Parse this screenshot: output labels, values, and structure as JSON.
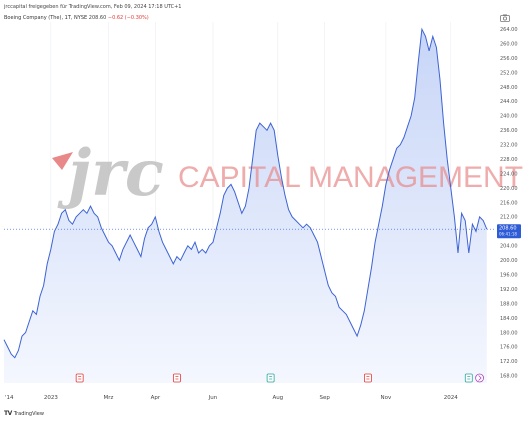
{
  "header": {
    "publisher_line": "jrccapital freigegeben für TradingView.com, Feb 09, 2024 17:18 UTC+1",
    "symbol": "Boeing Company (The), 1T, NYSE",
    "last": "208.60",
    "change": "−0.62 (−0.30%)"
  },
  "watermark": {
    "logo_text": "jrc",
    "company_text": "CAPITAL MANAGEMENT",
    "accent_color": "#e53935"
  },
  "footer": {
    "brand": "TradingView"
  },
  "colors": {
    "line": "#3d63d4",
    "area_top": "#c7d5f7",
    "area_bottom": "#f4f7fe",
    "price_badge": "#2e5bd6"
  },
  "chart_data": {
    "type": "area",
    "title": "",
    "xlabel": "",
    "ylabel": "",
    "ylim": [
      166,
      266
    ],
    "y_ticks": [
      168,
      172,
      176,
      180,
      184,
      188,
      192,
      196,
      200,
      204,
      208,
      212,
      216,
      220,
      224,
      228,
      232,
      236,
      240,
      244,
      248,
      252,
      256,
      260,
      264
    ],
    "x_ticks": [
      {
        "label": "'14",
        "t": 0
      },
      {
        "label": "2023",
        "t": 13
      },
      {
        "label": "Mrz",
        "t": 29
      },
      {
        "label": "Apr",
        "t": 42
      },
      {
        "label": "Jun",
        "t": 58
      },
      {
        "label": "Aug",
        "t": 76
      },
      {
        "label": "Sep",
        "t": 89
      },
      {
        "label": "Nov",
        "t": 106
      },
      {
        "label": "2024",
        "t": 124
      }
    ],
    "x_range": [
      0,
      136
    ],
    "last_price": {
      "value": 208.6,
      "label": "208.60",
      "countdown": "06:41:18"
    },
    "event_markers": [
      {
        "t": 21,
        "type": "E"
      },
      {
        "t": 48,
        "type": "E"
      },
      {
        "t": 74,
        "type": "D"
      },
      {
        "t": 101,
        "type": "E"
      },
      {
        "t": 129,
        "type": "D"
      },
      {
        "t": 132,
        "type": "S"
      }
    ],
    "series": [
      {
        "values": [
          [
            0,
            178
          ],
          [
            1,
            176
          ],
          [
            2,
            174
          ],
          [
            3,
            173
          ],
          [
            4,
            175
          ],
          [
            5,
            179
          ],
          [
            6,
            180
          ],
          [
            7,
            183
          ],
          [
            8,
            186
          ],
          [
            9,
            185
          ],
          [
            10,
            190
          ],
          [
            11,
            193
          ],
          [
            12,
            199
          ],
          [
            13,
            203
          ],
          [
            14,
            208
          ],
          [
            15,
            210
          ],
          [
            16,
            213
          ],
          [
            17,
            214
          ],
          [
            18,
            211
          ],
          [
            19,
            210
          ],
          [
            20,
            212
          ],
          [
            21,
            213
          ],
          [
            22,
            214
          ],
          [
            23,
            213
          ],
          [
            24,
            215
          ],
          [
            25,
            213
          ],
          [
            26,
            212
          ],
          [
            27,
            209
          ],
          [
            28,
            207
          ],
          [
            29,
            205
          ],
          [
            30,
            204
          ],
          [
            31,
            202
          ],
          [
            32,
            200
          ],
          [
            33,
            203
          ],
          [
            34,
            205
          ],
          [
            35,
            207
          ],
          [
            36,
            205
          ],
          [
            37,
            203
          ],
          [
            38,
            201
          ],
          [
            39,
            206
          ],
          [
            40,
            209
          ],
          [
            41,
            210
          ],
          [
            42,
            212
          ],
          [
            43,
            208
          ],
          [
            44,
            205
          ],
          [
            45,
            203
          ],
          [
            46,
            201
          ],
          [
            47,
            199
          ],
          [
            48,
            201
          ],
          [
            49,
            200
          ],
          [
            50,
            202
          ],
          [
            51,
            204
          ],
          [
            52,
            203
          ],
          [
            53,
            205
          ],
          [
            54,
            202
          ],
          [
            55,
            203
          ],
          [
            56,
            202
          ],
          [
            57,
            204
          ],
          [
            58,
            205
          ],
          [
            59,
            209
          ],
          [
            60,
            213
          ],
          [
            61,
            218
          ],
          [
            62,
            220
          ],
          [
            63,
            221
          ],
          [
            64,
            219
          ],
          [
            65,
            216
          ],
          [
            66,
            213
          ],
          [
            67,
            215
          ],
          [
            68,
            220
          ],
          [
            69,
            228
          ],
          [
            70,
            236
          ],
          [
            71,
            238
          ],
          [
            72,
            237
          ],
          [
            73,
            236
          ],
          [
            74,
            238
          ],
          [
            75,
            236
          ],
          [
            76,
            229
          ],
          [
            77,
            223
          ],
          [
            78,
            218
          ],
          [
            79,
            214
          ],
          [
            80,
            212
          ],
          [
            81,
            211
          ],
          [
            82,
            210
          ],
          [
            83,
            209
          ],
          [
            84,
            210
          ],
          [
            85,
            209
          ],
          [
            86,
            207
          ],
          [
            87,
            205
          ],
          [
            88,
            201
          ],
          [
            89,
            197
          ],
          [
            90,
            193
          ],
          [
            91,
            191
          ],
          [
            92,
            190
          ],
          [
            93,
            187
          ],
          [
            94,
            186
          ],
          [
            95,
            185
          ],
          [
            96,
            183
          ],
          [
            97,
            181
          ],
          [
            98,
            179
          ],
          [
            99,
            182
          ],
          [
            100,
            186
          ],
          [
            101,
            192
          ],
          [
            102,
            198
          ],
          [
            103,
            205
          ],
          [
            104,
            210
          ],
          [
            105,
            215
          ],
          [
            106,
            221
          ],
          [
            107,
            225
          ],
          [
            108,
            228
          ],
          [
            109,
            231
          ],
          [
            110,
            232
          ],
          [
            111,
            234
          ],
          [
            112,
            237
          ],
          [
            113,
            240
          ],
          [
            114,
            245
          ],
          [
            115,
            255
          ],
          [
            116,
            264
          ],
          [
            117,
            262
          ],
          [
            118,
            258
          ],
          [
            119,
            262
          ],
          [
            120,
            259
          ],
          [
            121,
            250
          ],
          [
            122,
            238
          ],
          [
            123,
            228
          ],
          [
            124,
            220
          ],
          [
            125,
            212
          ],
          [
            126,
            202
          ],
          [
            127,
            213
          ],
          [
            128,
            211
          ],
          [
            129,
            202
          ],
          [
            130,
            210
          ],
          [
            131,
            208
          ],
          [
            132,
            212
          ],
          [
            133,
            211
          ],
          [
            134,
            208.6
          ]
        ]
      }
    ]
  }
}
